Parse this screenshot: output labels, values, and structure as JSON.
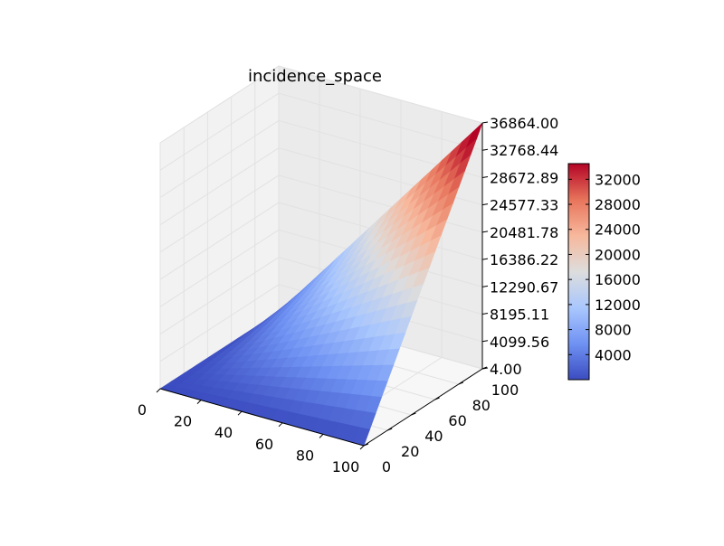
{
  "chart_data": {
    "type": "surface3d",
    "title": "incidence_space",
    "xlabel": "",
    "ylabel": "",
    "zlabel": "",
    "x_ticks": [
      "0",
      "20",
      "40",
      "60",
      "80",
      "100"
    ],
    "y_ticks": [
      "0",
      "20",
      "40",
      "60",
      "80",
      "100"
    ],
    "z_ticks": [
      "4.00",
      "4099.56",
      "8195.11",
      "12290.67",
      "16386.22",
      "20481.78",
      "24577.33",
      "28672.89",
      "32768.44",
      "36864.00"
    ],
    "xlim": [
      0,
      100
    ],
    "ylim": [
      0,
      100
    ],
    "zlim": [
      4.0,
      36864.0
    ],
    "corner_values": {
      "x0_y0": 4.0,
      "x100_y0": 4.0,
      "x0_y100": 4.0,
      "x100_y100": 36864.0
    },
    "colormap": "coolwarm",
    "colormap_stops": [
      "#3b4cc0",
      "#6f92f3",
      "#aac7fd",
      "#dddddd",
      "#f7b89c",
      "#e7745b",
      "#b40426"
    ],
    "colorbar": {
      "ticks": [
        "4000",
        "8000",
        "12000",
        "16000",
        "20000",
        "24000",
        "28000",
        "32000"
      ],
      "tick_values": [
        4000,
        8000,
        12000,
        16000,
        20000,
        24000,
        28000,
        32000
      ],
      "range": [
        4.0,
        34500.0
      ]
    },
    "grid": true
  }
}
